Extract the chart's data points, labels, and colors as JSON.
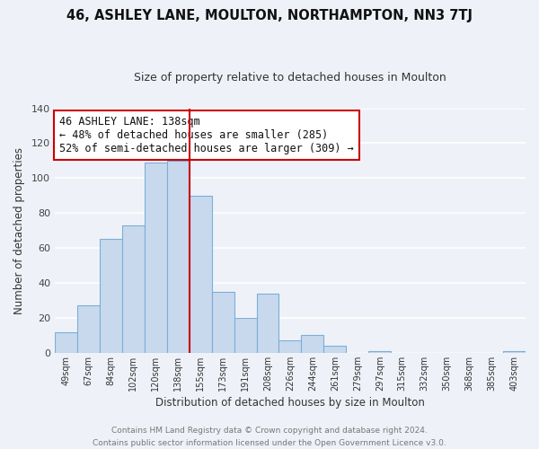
{
  "title": "46, ASHLEY LANE, MOULTON, NORTHAMPTON, NN3 7TJ",
  "subtitle": "Size of property relative to detached houses in Moulton",
  "xlabel": "Distribution of detached houses by size in Moulton",
  "ylabel": "Number of detached properties",
  "bar_labels": [
    "49sqm",
    "67sqm",
    "84sqm",
    "102sqm",
    "120sqm",
    "138sqm",
    "155sqm",
    "173sqm",
    "191sqm",
    "208sqm",
    "226sqm",
    "244sqm",
    "261sqm",
    "279sqm",
    "297sqm",
    "315sqm",
    "332sqm",
    "350sqm",
    "368sqm",
    "385sqm",
    "403sqm"
  ],
  "bar_values": [
    12,
    27,
    65,
    73,
    109,
    110,
    90,
    35,
    20,
    34,
    7,
    10,
    4,
    0,
    1,
    0,
    0,
    0,
    0,
    0,
    1
  ],
  "bar_color": "#c8d9ee",
  "bar_edge_color": "#7bafd4",
  "highlight_index": 5,
  "highlight_line_color": "#cc0000",
  "ylim": [
    0,
    140
  ],
  "yticks": [
    0,
    20,
    40,
    60,
    80,
    100,
    120,
    140
  ],
  "annotation_title": "46 ASHLEY LANE: 138sqm",
  "annotation_line1": "← 48% of detached houses are smaller (285)",
  "annotation_line2": "52% of semi-detached houses are larger (309) →",
  "annotation_box_color": "#ffffff",
  "annotation_box_edge": "#cc0000",
  "footer_line1": "Contains HM Land Registry data © Crown copyright and database right 2024.",
  "footer_line2": "Contains public sector information licensed under the Open Government Licence v3.0.",
  "background_color": "#eef2f8",
  "grid_color": "#ffffff",
  "title_fontsize": 10.5,
  "subtitle_fontsize": 9,
  "annotation_fontsize": 8.5,
  "footer_fontsize": 6.5
}
